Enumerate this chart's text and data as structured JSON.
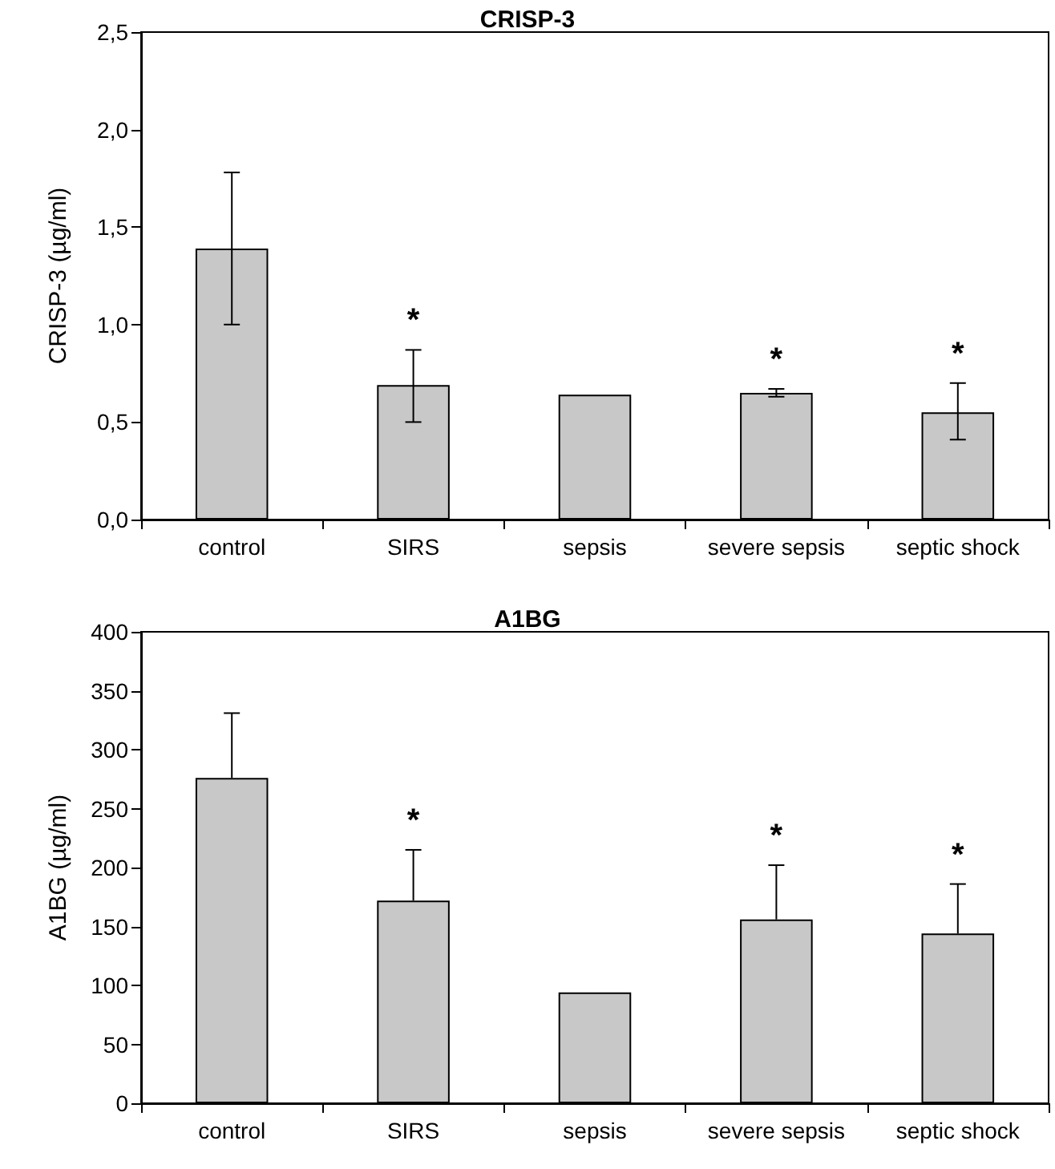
{
  "chart_data": [
    {
      "type": "bar",
      "title": "CRISP-3",
      "ylabel": "CRISP-3 (µg/ml)",
      "categories": [
        "control",
        "SIRS",
        "sepsis",
        "severe sepsis",
        "septic shock"
      ],
      "values": [
        1.39,
        0.69,
        0.64,
        0.65,
        0.55
      ],
      "errors": [
        [
          1.0,
          1.78
        ],
        [
          0.5,
          0.87
        ],
        null,
        [
          0.63,
          0.67
        ],
        [
          0.41,
          0.7
        ]
      ],
      "color": "#c8c8c8",
      "ylim": [
        0,
        2.5
      ],
      "yticks": [
        {
          "value": 0,
          "label": "0,0"
        },
        {
          "value": 0.5,
          "label": "0,5"
        },
        {
          "value": 1,
          "label": "1,0"
        },
        {
          "value": 1.5,
          "label": "1,5"
        },
        {
          "value": 2,
          "label": "2,0"
        },
        {
          "value": 2.5,
          "label": "2,5"
        }
      ],
      "value_labels": [
        null,
        "*",
        null,
        "*",
        "*"
      ],
      "grid": false
    },
    {
      "type": "bar",
      "title": "A1BG",
      "ylabel": "A1BG (µg/ml)",
      "categories": [
        "control",
        "SIRS",
        "sepsis",
        "severe sepsis",
        "septic shock"
      ],
      "values": [
        276,
        172,
        94,
        156,
        144
      ],
      "errors": [
        [
          276,
          331
        ],
        [
          172,
          215
        ],
        null,
        [
          156,
          202
        ],
        [
          144,
          186
        ]
      ],
      "color": "#c8c8c8",
      "ylim": [
        0,
        400
      ],
      "yticks": [
        0,
        50,
        100,
        150,
        200,
        250,
        300,
        350,
        400
      ],
      "value_labels": [
        null,
        "*",
        null,
        "*",
        "*"
      ],
      "grid": false
    }
  ]
}
